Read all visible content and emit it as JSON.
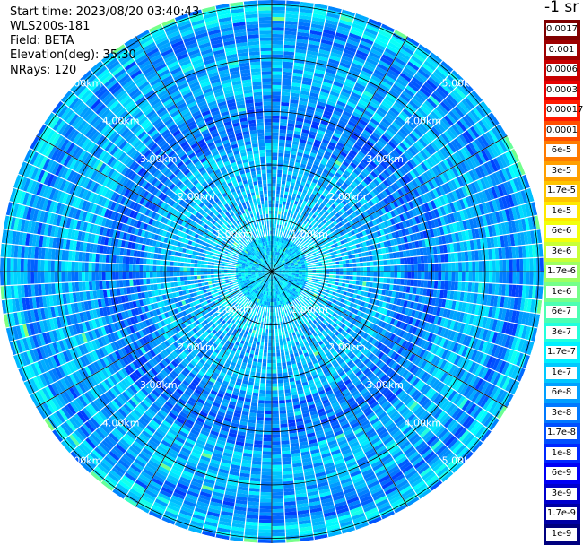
{
  "header": {
    "start_time": "Start time: 2023/08/20 03:40:43",
    "instrument": "WLS200s-181",
    "field": "Field: BETA",
    "elevation": "Elevation(deg): 35.30",
    "nrays": "NRays: 120"
  },
  "colorbar": {
    "unit_label": "-1 sr",
    "labels": [
      "0.0017",
      "0.001",
      "0.0006",
      "0.0003",
      "0.00017",
      "0.0001",
      "6e-5",
      "3e-5",
      "1.7e-5",
      "1e-5",
      "6e-6",
      "3e-6",
      "1.7e-6",
      "1e-6",
      "6e-7",
      "3e-7",
      "1.7e-7",
      "1e-7",
      "6e-8",
      "3e-8",
      "1.7e-8",
      "1e-8",
      "6e-9",
      "3e-9",
      "1.7e-9",
      "1e-9"
    ],
    "colors": [
      "#7f0000",
      "#9e0000",
      "#c80000",
      "#e60000",
      "#ff1a00",
      "#ff4d00",
      "#ff7a00",
      "#ff9f00",
      "#ffc400",
      "#ffe800",
      "#f2ff0c",
      "#c8ff37",
      "#9dff62",
      "#75ff8a",
      "#4cffb3",
      "#22ffdd",
      "#00f0ff",
      "#00c8ff",
      "#00a0ff",
      "#0078ff",
      "#0050ff",
      "#0028ff",
      "#0000f5",
      "#0000cd",
      "#0000a4",
      "#00007f"
    ]
  },
  "chart_data": {
    "type": "heatmap",
    "projection": "polar PPI scan",
    "field": "BETA",
    "elevation_deg": 35.3,
    "n_rays": 120,
    "range_rings_km": [
      1.0,
      2.0,
      3.0,
      4.0,
      5.0
    ],
    "ring_labels": [
      "1.00km",
      "2.00km",
      "3.00km",
      "4.00km",
      "5.00km"
    ],
    "radial_lines_deg": [
      0,
      30,
      60,
      90,
      120,
      150,
      180,
      210,
      240,
      270,
      300,
      330
    ],
    "colormap": "jet",
    "scale": "log",
    "value_range": [
      1e-09,
      0.0017
    ]
  }
}
